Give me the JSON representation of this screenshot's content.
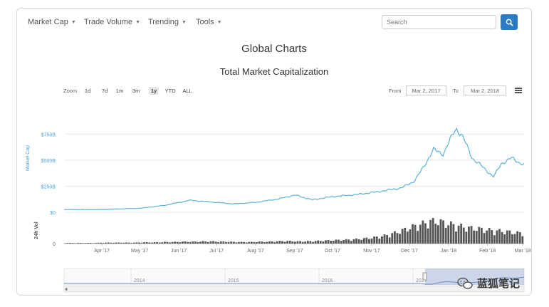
{
  "nav": {
    "items": [
      {
        "label": "Market Cap"
      },
      {
        "label": "Trade Volume"
      },
      {
        "label": "Trending"
      },
      {
        "label": "Tools"
      }
    ],
    "search_placeholder": "Search"
  },
  "page_title": "Global Charts",
  "chart_title": "Total Market Capitalization",
  "toolbar": {
    "zoom_label": "Zoom",
    "zoom_options": [
      "1d",
      "7d",
      "1m",
      "3m",
      "1y",
      "YTD",
      "ALL"
    ],
    "zoom_active": "1y",
    "from_label": "From",
    "from_value": "Mar 2, 2017",
    "to_label": "To",
    "to_value": "Mar 2, 2018"
  },
  "watermark": "蓝狐笔记",
  "colors": {
    "line": "#5ab0d8",
    "axis_label": "#4aa3d9",
    "volume": "#555555",
    "search_button": "#2b7bc4"
  },
  "chart_data": {
    "type": "line",
    "title": "Total Market Capitalization",
    "ylabel": "Market Cap",
    "y_ticks": [
      "$0",
      "$250B",
      "$500B",
      "$750B"
    ],
    "ylim": [
      0,
      875
    ],
    "x_ticks": [
      "Apr '17",
      "May '17",
      "Jun '17",
      "Jul '17",
      "Aug '17",
      "Sep '17",
      "Oct '17",
      "Nov '17",
      "Dec '17",
      "Jan '18",
      "Feb '18",
      "Mar '18"
    ],
    "series": [
      {
        "x": [
          "2017-03-02",
          "2017-04-01",
          "2017-05-01",
          "2017-05-20",
          "2017-06-10",
          "2017-06-25",
          "2017-07-15",
          "2017-08-01",
          "2017-08-20",
          "2017-09-01",
          "2017-09-15",
          "2017-10-01",
          "2017-10-20",
          "2017-11-05",
          "2017-11-25",
          "2017-12-05",
          "2017-12-10",
          "2017-12-20",
          "2017-12-28",
          "2018-01-07",
          "2018-01-12",
          "2018-01-20",
          "2018-02-06",
          "2018-02-12",
          "2018-02-20",
          "2018-03-02"
        ],
        "values": [
          25,
          27,
          38,
          65,
          115,
          100,
          80,
          95,
          130,
          165,
          120,
          150,
          170,
          195,
          235,
          300,
          390,
          600,
          560,
          810,
          730,
          520,
          340,
          470,
          520,
          455
        ]
      }
    ],
    "volume": {
      "ylabel": "24h Vol",
      "y_ticks": [
        "0"
      ],
      "values": [
        2,
        2,
        2,
        2,
        2,
        3,
        3,
        3,
        3,
        3,
        4,
        4,
        4,
        5,
        5,
        6,
        6,
        6,
        7,
        7,
        6,
        6,
        5,
        5,
        5,
        6,
        6,
        7,
        8,
        8,
        7,
        7,
        8,
        9,
        10,
        11,
        12,
        13,
        15,
        17,
        20,
        24,
        30,
        38,
        46,
        55,
        62,
        70,
        72,
        65,
        60,
        55,
        50,
        48,
        45,
        42,
        40,
        38,
        35,
        33
      ]
    },
    "navigator": {
      "x_ticks": [
        "2014",
        "2015",
        "2016",
        "2017"
      ]
    }
  }
}
